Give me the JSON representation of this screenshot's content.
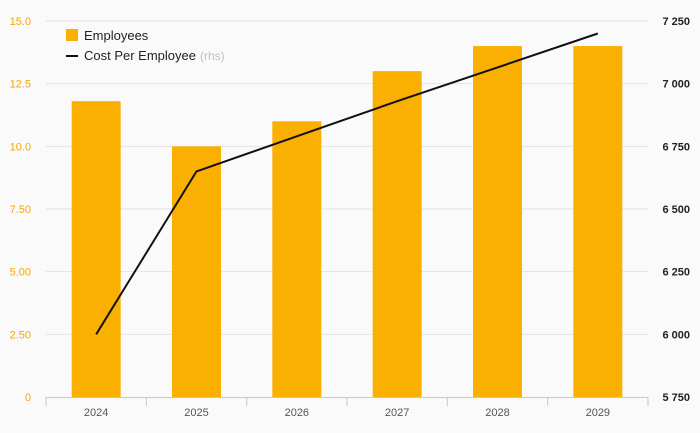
{
  "chart_data": {
    "type": "bar",
    "categories": [
      "2024",
      "2025",
      "2026",
      "2027",
      "2028",
      "2029"
    ],
    "series": [
      {
        "name": "Employees",
        "type": "bar",
        "axis": "left",
        "color": "#f9b000",
        "values": [
          11.8,
          10.0,
          11.0,
          13.0,
          14.0,
          14.0
        ]
      },
      {
        "name": "Cost Per Employee",
        "name_suffix": "(rhs)",
        "type": "line",
        "axis": "right",
        "color": "#111111",
        "values": [
          6000,
          6650,
          6790,
          6930,
          7065,
          7200
        ]
      }
    ],
    "y_left": {
      "min": 0,
      "max": 15,
      "ticks": [
        0,
        2.5,
        5,
        7.5,
        10,
        12.5,
        15
      ],
      "tick_labels": [
        "0",
        "2.50",
        "5.00",
        "7.50",
        "10.0",
        "12.5",
        "15.0"
      ],
      "color": "#f5a800"
    },
    "y_right": {
      "min": 5750,
      "max": 7250,
      "ticks": [
        5750,
        6000,
        6250,
        6500,
        6750,
        7000,
        7250
      ],
      "tick_labels": [
        "5 750",
        "6 000",
        "6 250",
        "6 500",
        "6 750",
        "7 000",
        "7 250"
      ]
    },
    "grid": true,
    "legend": {
      "position": "top-left"
    }
  }
}
